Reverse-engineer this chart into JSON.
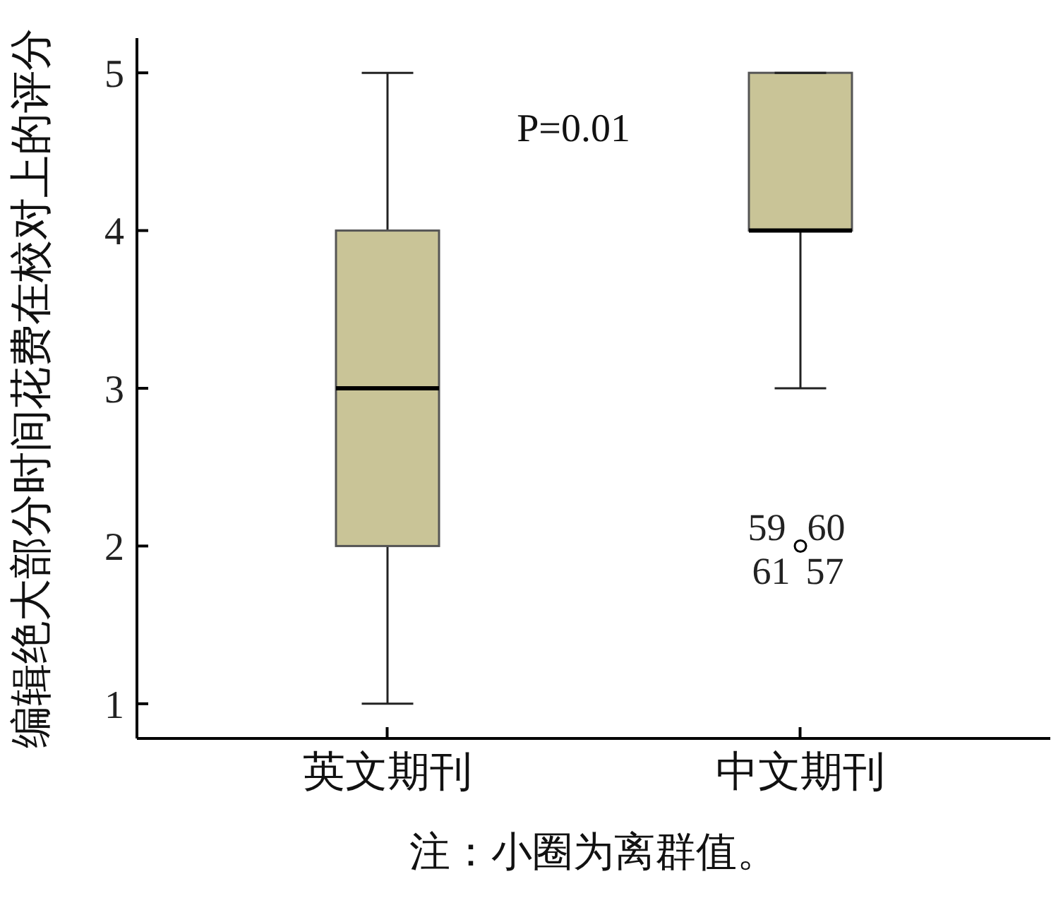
{
  "chart_data": {
    "type": "box",
    "ylabel": "编辑绝大部分时间花费在校对上的评分",
    "categories": [
      "英文期刊",
      "中文期刊"
    ],
    "boxes": [
      {
        "low": 1,
        "q1": 2,
        "median": 3,
        "q3": 4,
        "high": 5
      },
      {
        "low": 3,
        "q1": 4,
        "median": 4,
        "q3": 5,
        "high": 5,
        "outliers": [
          2
        ]
      }
    ],
    "color": "#c9c497",
    "ylim": [
      0.78,
      5.22
    ],
    "yticks": [
      1,
      2,
      3,
      4,
      5
    ],
    "annotations": [
      "P=0.01",
      "59",
      "60",
      "61",
      "57",
      "注：小圈为离群值。"
    ]
  }
}
